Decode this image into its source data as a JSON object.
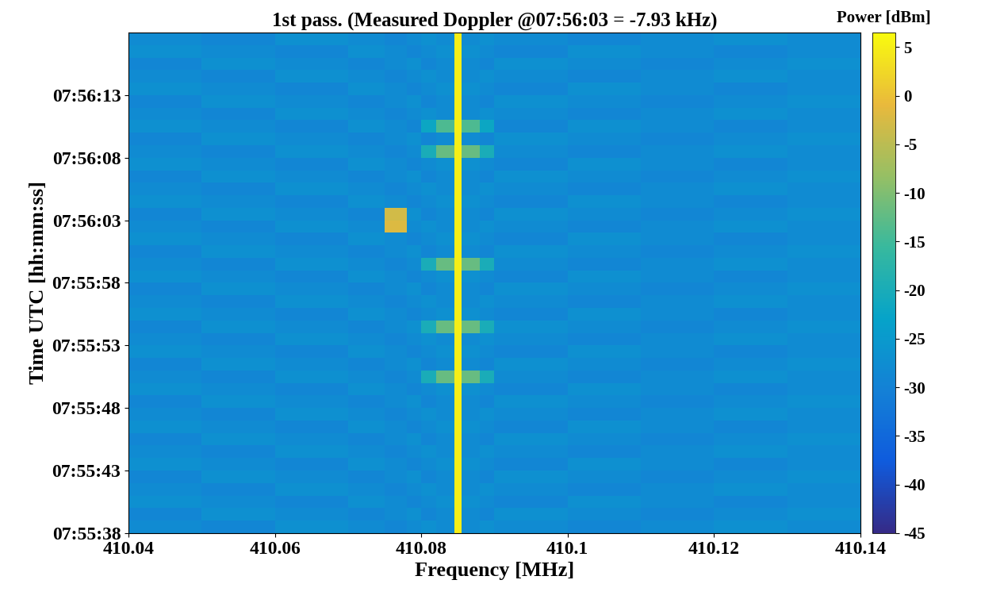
{
  "chart_data": {
    "type": "heatmap",
    "title": "1st pass. (Measured Doppler @07:56:03 = -7.93 kHz)",
    "x_label": "Frequency [MHz]",
    "y_label": "Time UTC [hh:mm:ss]",
    "xlim": [
      410.04,
      410.14
    ],
    "xticks": [
      410.04,
      410.06,
      410.08,
      410.1,
      410.12,
      410.14
    ],
    "ylim": [
      28538,
      28578
    ],
    "yticks": [
      {
        "value": 28538,
        "label": "07:55:38"
      },
      {
        "value": 28543,
        "label": "07:55:43"
      },
      {
        "value": 28548,
        "label": "07:55:48"
      },
      {
        "value": 28553,
        "label": "07:55:53"
      },
      {
        "value": 28558,
        "label": "07:55:58"
      },
      {
        "value": 28563,
        "label": "07:56:03"
      },
      {
        "value": 28568,
        "label": "07:56:08"
      },
      {
        "value": 28573,
        "label": "07:56:13"
      }
    ],
    "x_edges": [
      410.04,
      410.05,
      410.06,
      410.07,
      410.075,
      410.078,
      410.08,
      410.082,
      410.0845,
      410.0855,
      410.088,
      410.09,
      410.1,
      410.11,
      410.12,
      410.13,
      410.14
    ],
    "y_edges": [
      28538,
      28539,
      28540,
      28541,
      28542,
      28543,
      28544,
      28545,
      28546,
      28547,
      28548,
      28549,
      28550,
      28551,
      28552,
      28553,
      28554,
      28555,
      28556,
      28557,
      28558,
      28559,
      28560,
      28561,
      28562,
      28563,
      28564,
      28565,
      28566,
      28567,
      28568,
      28569,
      28570,
      28571,
      28572,
      28573,
      28574,
      28575,
      28576,
      28577,
      28578
    ],
    "cells": [
      [
        -28,
        -29,
        -27,
        -28,
        -29,
        -28,
        -27,
        -28,
        5,
        -28,
        -27,
        -28,
        -29,
        -28,
        -27,
        -28
      ],
      [
        -29,
        -27,
        -28,
        -29,
        -28,
        -27,
        -29,
        -28,
        5,
        -28,
        -29,
        -27,
        -28,
        -29,
        -28,
        -27
      ],
      [
        -27,
        -28,
        -29,
        -27,
        -28,
        -29,
        -28,
        -27,
        5,
        -27,
        -28,
        -29,
        -27,
        -28,
        -29,
        -28
      ],
      [
        -28,
        -29,
        -27,
        -28,
        -29,
        -28,
        -27,
        -28,
        5,
        -28,
        -27,
        -28,
        -29,
        -28,
        -27,
        -28
      ],
      [
        -29,
        -27,
        -28,
        -29,
        -28,
        -27,
        -29,
        -28,
        5,
        -28,
        -29,
        -27,
        -28,
        -29,
        -28,
        -27
      ],
      [
        -27,
        -28,
        -29,
        -27,
        -28,
        -29,
        -28,
        -27,
        5,
        -27,
        -28,
        -29,
        -27,
        -28,
        -29,
        -28
      ],
      [
        -28,
        -29,
        -27,
        -28,
        -29,
        -28,
        -27,
        -28,
        5,
        -28,
        -27,
        -28,
        -29,
        -28,
        -27,
        -28
      ],
      [
        -29,
        -27,
        -28,
        -29,
        -28,
        -27,
        -29,
        -28,
        5,
        -28,
        -29,
        -27,
        -28,
        -29,
        -28,
        -27
      ],
      [
        -27,
        -28,
        -29,
        -27,
        -28,
        -29,
        -28,
        -27,
        5,
        -27,
        -28,
        -29,
        -27,
        -28,
        -29,
        -28
      ],
      [
        -28,
        -29,
        -27,
        -28,
        -29,
        -28,
        -27,
        -28,
        5,
        -28,
        -27,
        -28,
        -29,
        -28,
        -27,
        -28
      ],
      [
        -29,
        -27,
        -28,
        -29,
        -28,
        -27,
        -29,
        -28,
        5,
        -28,
        -29,
        -27,
        -28,
        -29,
        -28,
        -27
      ],
      [
        -27,
        -28,
        -29,
        -27,
        -28,
        -29,
        -28,
        -27,
        5,
        -27,
        -28,
        -29,
        -27,
        -28,
        -29,
        -28
      ],
      [
        -28,
        -29,
        -27,
        -28,
        -29,
        -28,
        -20,
        -12,
        5,
        -12,
        -20,
        -28,
        -29,
        -28,
        -27,
        -28
      ],
      [
        -29,
        -27,
        -28,
        -29,
        -28,
        -27,
        -29,
        -28,
        5,
        -28,
        -29,
        -27,
        -28,
        -29,
        -28,
        -27
      ],
      [
        -27,
        -28,
        -29,
        -27,
        -28,
        -29,
        -28,
        -27,
        5,
        -27,
        -28,
        -29,
        -27,
        -28,
        -29,
        -28
      ],
      [
        -28,
        -29,
        -27,
        -28,
        -29,
        -28,
        -27,
        -28,
        5,
        -28,
        -27,
        -28,
        -29,
        -28,
        -27,
        -28
      ],
      [
        -29,
        -27,
        -28,
        -29,
        -28,
        -27,
        -20,
        -12,
        5,
        -12,
        -20,
        -27,
        -28,
        -29,
        -28,
        -27
      ],
      [
        -27,
        -28,
        -29,
        -27,
        -28,
        -29,
        -28,
        -27,
        5,
        -27,
        -28,
        -29,
        -27,
        -28,
        -29,
        -28
      ],
      [
        -28,
        -29,
        -27,
        -28,
        -29,
        -28,
        -27,
        -28,
        5,
        -28,
        -27,
        -28,
        -29,
        -28,
        -27,
        -28
      ],
      [
        -29,
        -27,
        -28,
        -29,
        -28,
        -27,
        -29,
        -28,
        5,
        -28,
        -29,
        -27,
        -28,
        -29,
        -28,
        -27
      ],
      [
        -27,
        -28,
        -29,
        -27,
        -28,
        -29,
        -28,
        -27,
        5,
        -27,
        -28,
        -29,
        -27,
        -28,
        -29,
        -28
      ],
      [
        -28,
        -29,
        -27,
        -28,
        -29,
        -28,
        -20,
        -12,
        5,
        -12,
        -20,
        -28,
        -29,
        -28,
        -27,
        -28
      ],
      [
        -29,
        -27,
        -28,
        -29,
        -28,
        -27,
        -29,
        -28,
        5,
        -28,
        -29,
        -27,
        -28,
        -29,
        -28,
        -27
      ],
      [
        -27,
        -28,
        -29,
        -27,
        -28,
        -29,
        -28,
        -27,
        5,
        -27,
        -28,
        -29,
        -27,
        -28,
        -29,
        -28
      ],
      [
        -28,
        -29,
        -27,
        -28,
        -2,
        -28,
        -27,
        -28,
        5,
        -28,
        -27,
        -28,
        -29,
        -28,
        -27,
        -28
      ],
      [
        -29,
        -27,
        -28,
        -29,
        -3,
        -27,
        -29,
        -28,
        5,
        -28,
        -29,
        -27,
        -28,
        -29,
        -28,
        -27
      ],
      [
        -27,
        -28,
        -29,
        -27,
        -28,
        -29,
        -28,
        -27,
        5,
        -27,
        -28,
        -29,
        -27,
        -28,
        -29,
        -28
      ],
      [
        -28,
        -29,
        -27,
        -28,
        -29,
        -28,
        -27,
        -28,
        5,
        -28,
        -27,
        -28,
        -29,
        -28,
        -27,
        -28
      ],
      [
        -29,
        -27,
        -28,
        -29,
        -28,
        -27,
        -29,
        -28,
        5,
        -28,
        -29,
        -27,
        -28,
        -29,
        -28,
        -27
      ],
      [
        -27,
        -28,
        -29,
        -27,
        -28,
        -29,
        -28,
        -27,
        5,
        -27,
        -28,
        -29,
        -27,
        -28,
        -29,
        -28
      ],
      [
        -28,
        -29,
        -27,
        -28,
        -29,
        -28,
        -20,
        -12,
        5,
        -12,
        -20,
        -28,
        -29,
        -28,
        -27,
        -28
      ],
      [
        -29,
        -27,
        -28,
        -29,
        -28,
        -27,
        -29,
        -28,
        5,
        -28,
        -29,
        -27,
        -28,
        -29,
        -28,
        -27
      ],
      [
        -27,
        -28,
        -29,
        -27,
        -28,
        -29,
        -22,
        -14,
        5,
        -14,
        -22,
        -29,
        -27,
        -28,
        -29,
        -28
      ],
      [
        -28,
        -29,
        -27,
        -28,
        -29,
        -28,
        -27,
        -28,
        5,
        -28,
        -27,
        -28,
        -29,
        -28,
        -27,
        -28
      ],
      [
        -29,
        -27,
        -28,
        -29,
        -28,
        -27,
        -29,
        -28,
        5,
        -28,
        -29,
        -27,
        -28,
        -29,
        -28,
        -27
      ],
      [
        -27,
        -28,
        -29,
        -27,
        -28,
        -29,
        -28,
        -27,
        5,
        -27,
        -28,
        -29,
        -27,
        -28,
        -29,
        -28
      ],
      [
        -28,
        -29,
        -27,
        -28,
        -29,
        -28,
        -27,
        -28,
        5,
        -28,
        -27,
        -28,
        -29,
        -28,
        -27,
        -28
      ],
      [
        -29,
        -27,
        -28,
        -29,
        -28,
        -27,
        -29,
        -28,
        5,
        -28,
        -29,
        -27,
        -28,
        -29,
        -28,
        -27
      ],
      [
        -27,
        -28,
        -29,
        -27,
        -28,
        -29,
        -28,
        -27,
        5,
        -27,
        -28,
        -29,
        -27,
        -28,
        -29,
        -28
      ],
      [
        -28,
        -29,
        -27,
        -28,
        -29,
        -28,
        -27,
        -28,
        5,
        -28,
        -27,
        -28,
        -29,
        -28,
        -27,
        -28
      ]
    ],
    "colorbar": {
      "label": "Power [dBm]",
      "range": [
        -45,
        6.5
      ],
      "ticks": [
        -45,
        -40,
        -35,
        -30,
        -25,
        -20,
        -15,
        -10,
        -5,
        0,
        5
      ]
    }
  }
}
